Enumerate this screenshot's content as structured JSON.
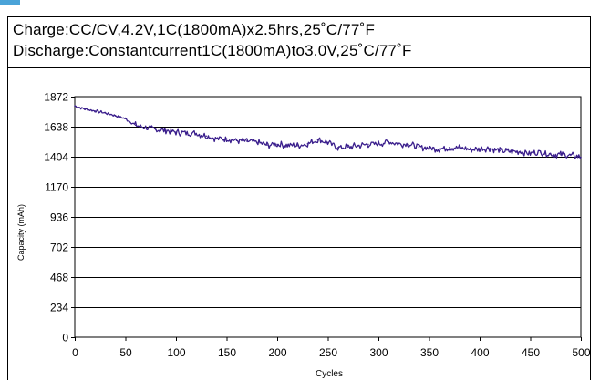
{
  "header": {
    "line1": "Charge:CC/CV,4.2V,1C(1800mA)x2.5hrs,25˚C/77˚F",
    "line2": "Discharge:Constantcurrent1C(1800mA)to3.0V,25˚C/77˚F"
  },
  "chart_data": {
    "type": "line",
    "title": "",
    "xlabel": "Cycles",
    "ylabel": "Capacity (mAh)",
    "xlim": [
      0,
      500
    ],
    "ylim": [
      0,
      1872
    ],
    "x_ticks": [
      "0",
      "50",
      "100",
      "150",
      "200",
      "250",
      "300",
      "350",
      "400",
      "450",
      "500"
    ],
    "y_ticks": [
      "0",
      "234",
      "468",
      "702",
      "936",
      "1170",
      "1404",
      "1638",
      "1872"
    ],
    "grid": "horizontal",
    "legend": "none",
    "series_color": "#3a1e8c",
    "series": [
      {
        "x": [
          0,
          10,
          20,
          30,
          40,
          50,
          60,
          70,
          80,
          90,
          100,
          110,
          120,
          130,
          140,
          150,
          160,
          170,
          180,
          190,
          200,
          210,
          220,
          230,
          240,
          250,
          260,
          270,
          280,
          290,
          300,
          310,
          320,
          330,
          340,
          350,
          360,
          370,
          380,
          390,
          400,
          410,
          420,
          430,
          440,
          450,
          460,
          470,
          480,
          490,
          500
        ],
        "values": [
          1800,
          1775,
          1760,
          1745,
          1725,
          1700,
          1650,
          1630,
          1615,
          1610,
          1595,
          1590,
          1585,
          1565,
          1545,
          1545,
          1530,
          1525,
          1515,
          1495,
          1500,
          1495,
          1490,
          1505,
          1535,
          1515,
          1475,
          1480,
          1490,
          1500,
          1505,
          1520,
          1505,
          1500,
          1480,
          1470,
          1465,
          1475,
          1475,
          1460,
          1465,
          1470,
          1450,
          1445,
          1445,
          1430,
          1440,
          1425,
          1420,
          1415,
          1400
        ]
      }
    ]
  }
}
